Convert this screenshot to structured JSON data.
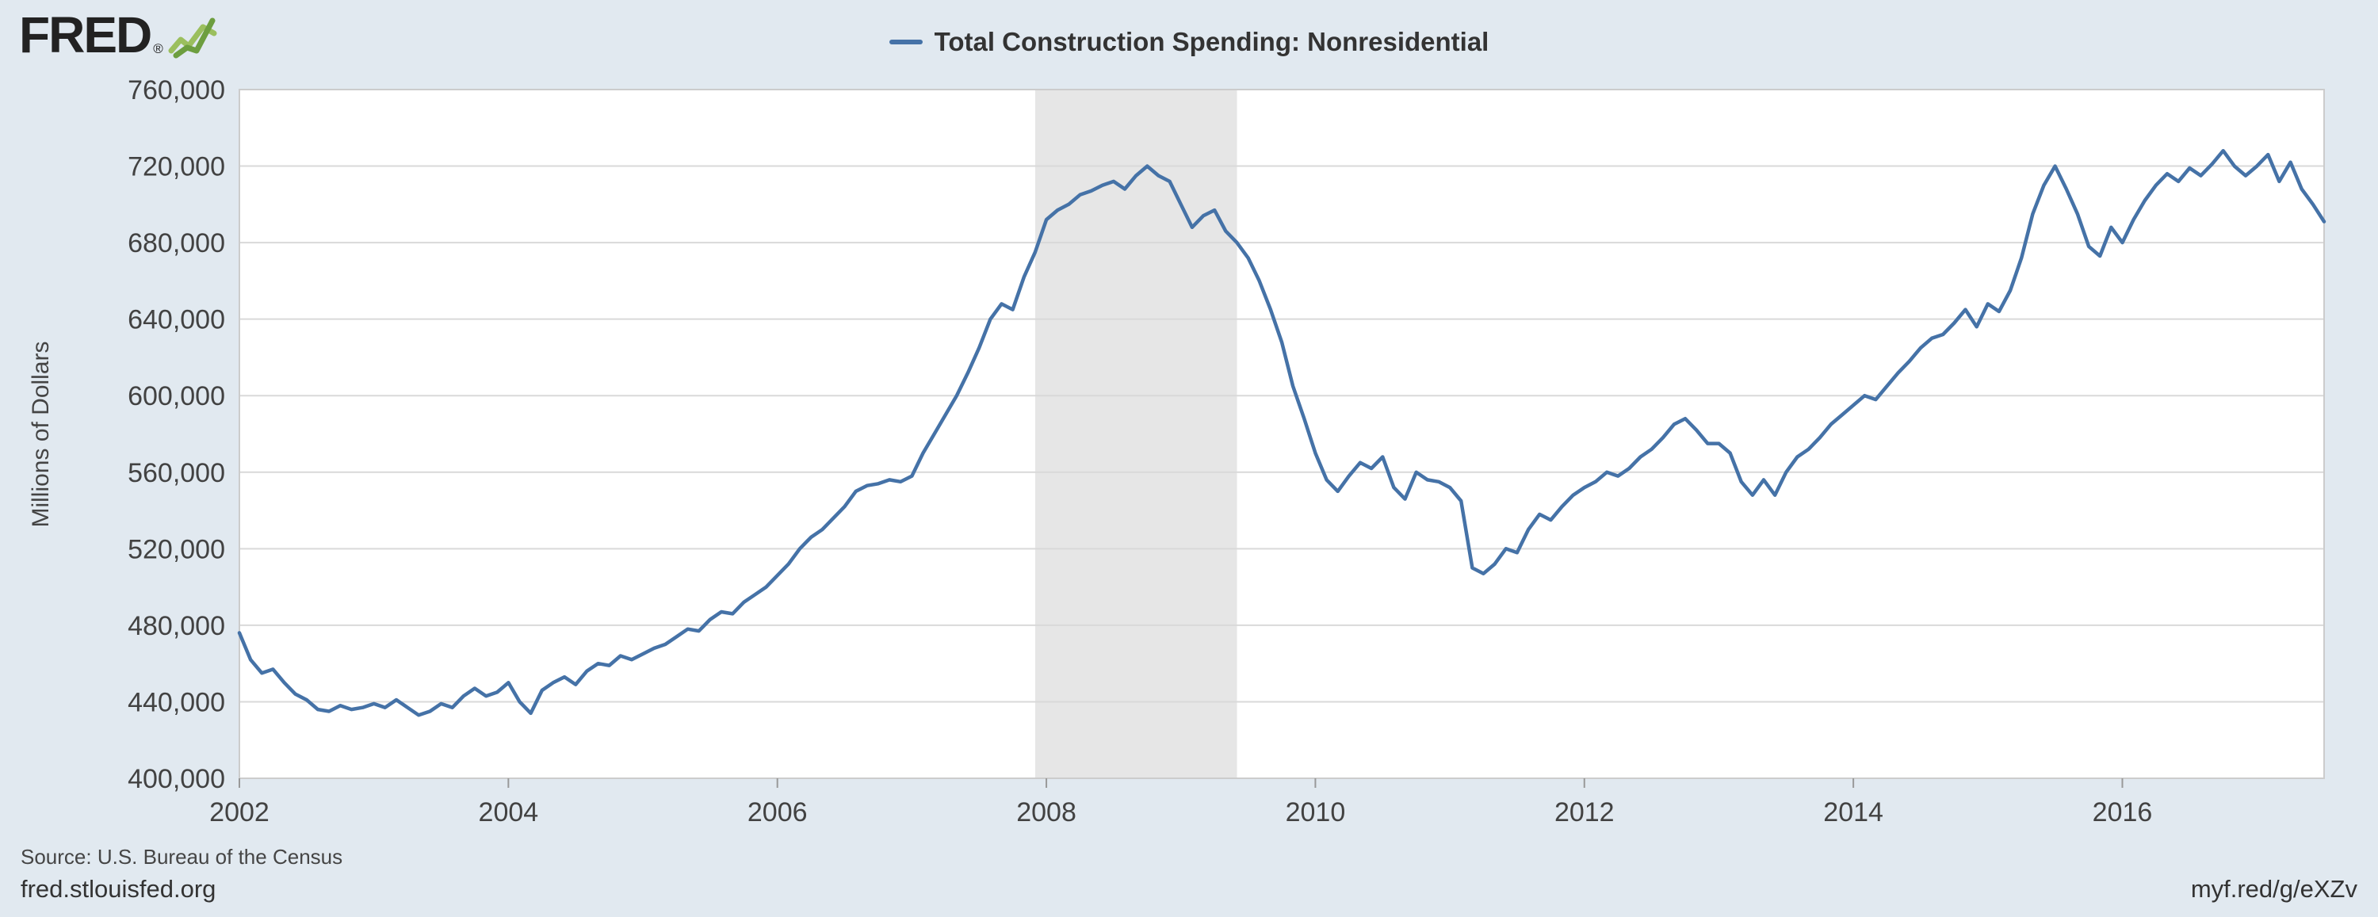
{
  "header": {
    "logo_text": "FRED",
    "logo_registered": "®",
    "legend": {
      "label": "Total Construction Spending: Nonresidential",
      "line_color": "#4572a7"
    }
  },
  "footer": {
    "source": "Source: U.S. Bureau of the Census",
    "site": "fred.stlouisfed.org",
    "short_url": "myf.red/g/eXZv"
  },
  "colors": {
    "page_background": "#e1e9f0",
    "plot_background": "#ffffff",
    "gridline": "#d9d9d9",
    "tick_text": "#424242",
    "line": "#4572a7",
    "recession_band": "#e6e6e6",
    "logo_green_light": "#9bbf5e",
    "logo_green_dark": "#6d9e3f"
  },
  "chart_data": {
    "type": "line",
    "title": "Total Construction Spending: Nonresidential",
    "ylabel": "Millions of Dollars",
    "ylim": [
      400000,
      760000
    ],
    "yticks": [
      400000,
      440000,
      480000,
      520000,
      560000,
      600000,
      640000,
      680000,
      720000,
      760000
    ],
    "ytick_labels": [
      "400,000",
      "440,000",
      "480,000",
      "520,000",
      "560,000",
      "600,000",
      "640,000",
      "680,000",
      "720,000",
      "760,000"
    ],
    "xlim": [
      2002.0,
      2017.5
    ],
    "xticks": [
      2002,
      2004,
      2006,
      2008,
      2010,
      2012,
      2014,
      2016
    ],
    "xtick_labels": [
      "2002",
      "2004",
      "2006",
      "2008",
      "2010",
      "2012",
      "2014",
      "2016"
    ],
    "recession_bands": [
      {
        "start": 2007.917,
        "end": 2009.417
      }
    ],
    "line_color": "#4572a7",
    "recession_color": "#e6e6e6",
    "legend_position": "top-center",
    "grid": "horizontal-only",
    "start_year": 2002,
    "points_per_year": 12,
    "values": [
      476000,
      462000,
      455000,
      457000,
      450000,
      444000,
      441000,
      436000,
      435000,
      438000,
      436000,
      437000,
      439000,
      437000,
      441000,
      437000,
      433000,
      435000,
      439000,
      437000,
      443000,
      447000,
      443000,
      445000,
      450000,
      440000,
      434000,
      446000,
      450000,
      453000,
      449000,
      456000,
      460000,
      459000,
      464000,
      462000,
      465000,
      468000,
      470000,
      474000,
      478000,
      477000,
      483000,
      487000,
      486000,
      492000,
      496000,
      500000,
      506000,
      512000,
      520000,
      526000,
      530000,
      536000,
      542000,
      550000,
      553000,
      554000,
      556000,
      555000,
      558000,
      570000,
      580000,
      590000,
      600000,
      612000,
      625000,
      640000,
      648000,
      645000,
      662000,
      675000,
      692000,
      697000,
      700000,
      705000,
      707000,
      710000,
      712000,
      708000,
      715000,
      720000,
      715000,
      712000,
      700000,
      688000,
      694000,
      697000,
      686000,
      680000,
      672000,
      660000,
      645000,
      628000,
      605000,
      588000,
      570000,
      556000,
      550000,
      558000,
      565000,
      562000,
      568000,
      552000,
      546000,
      560000,
      556000,
      555000,
      552000,
      545000,
      510000,
      507000,
      512000,
      520000,
      518000,
      530000,
      538000,
      535000,
      542000,
      548000,
      552000,
      555000,
      560000,
      558000,
      562000,
      568000,
      572000,
      578000,
      585000,
      588000,
      582000,
      575000,
      575000,
      570000,
      555000,
      548000,
      556000,
      548000,
      560000,
      568000,
      572000,
      578000,
      585000,
      590000,
      595000,
      600000,
      598000,
      605000,
      612000,
      618000,
      625000,
      630000,
      632000,
      638000,
      645000,
      636000,
      648000,
      644000,
      655000,
      672000,
      695000,
      710000,
      720000,
      708000,
      695000,
      678000,
      673000,
      688000,
      680000,
      692000,
      702000,
      710000,
      716000,
      712000,
      719000,
      715000,
      721000,
      728000,
      720000,
      715000,
      720000,
      726000,
      712000,
      722000,
      708000,
      700000,
      691000
    ]
  }
}
